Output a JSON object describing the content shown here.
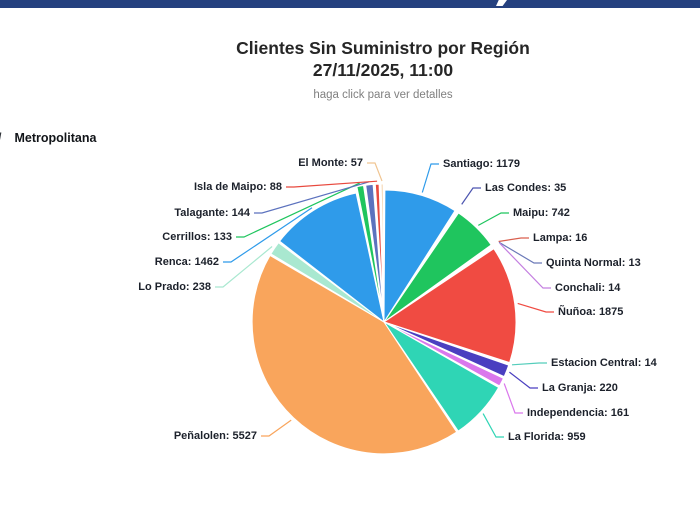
{
  "breadcrumb": {
    "separator": "/",
    "label": "Metropolitana"
  },
  "colors": {
    "topbar": "#25417F",
    "title_text": "#262626",
    "hint_text": "#808080",
    "label_text": "#1C212B"
  },
  "chart_data": {
    "type": "pie",
    "title": "Clientes Sin Suministro por Región",
    "datetime": "27/11/2025, 11:00",
    "hint": "haga click para ver detalles",
    "region": "Metropolitana",
    "label_format": "{name}: {value}",
    "legend_position": "none",
    "slices": [
      {
        "name": "Santiago",
        "value": 1179,
        "color": "#2F9BEA"
      },
      {
        "name": "Las Condes",
        "value": 35,
        "color": "#4C55B0"
      },
      {
        "name": "Maipu",
        "value": 742,
        "color": "#1FC55E"
      },
      {
        "name": "Lampa",
        "value": 16,
        "color": "#D95F4E"
      },
      {
        "name": "Quinta Normal",
        "value": 13,
        "color": "#6B79B8"
      },
      {
        "name": "Conchali",
        "value": 14,
        "color": "#C47FE0"
      },
      {
        "name": "Ñuñoa",
        "value": 1875,
        "color": "#F04B42"
      },
      {
        "name": "Estacion Central",
        "value": 14,
        "color": "#54CDBB"
      },
      {
        "name": "La Granja",
        "value": 220,
        "color": "#4A3FC0"
      },
      {
        "name": "Independencia",
        "value": 161,
        "color": "#DA77EC"
      },
      {
        "name": "La Florida",
        "value": 959,
        "color": "#2FD5B5"
      },
      {
        "name": "Peñalolen",
        "value": 5527,
        "color": "#F9A55C"
      },
      {
        "name": "Lo Prado",
        "value": 238,
        "color": "#A9E8D0"
      },
      {
        "name": "Renca",
        "value": 1462,
        "color": "#2F9BEA"
      },
      {
        "name": "Cerrillos",
        "value": 133,
        "color": "#1FC55E"
      },
      {
        "name": "Talagante",
        "value": 144,
        "color": "#5C72BE"
      },
      {
        "name": "Isla de Maipo",
        "value": 88,
        "color": "#E8493E"
      },
      {
        "name": "El Monte",
        "value": 57,
        "color": "#F0C592"
      }
    ]
  }
}
